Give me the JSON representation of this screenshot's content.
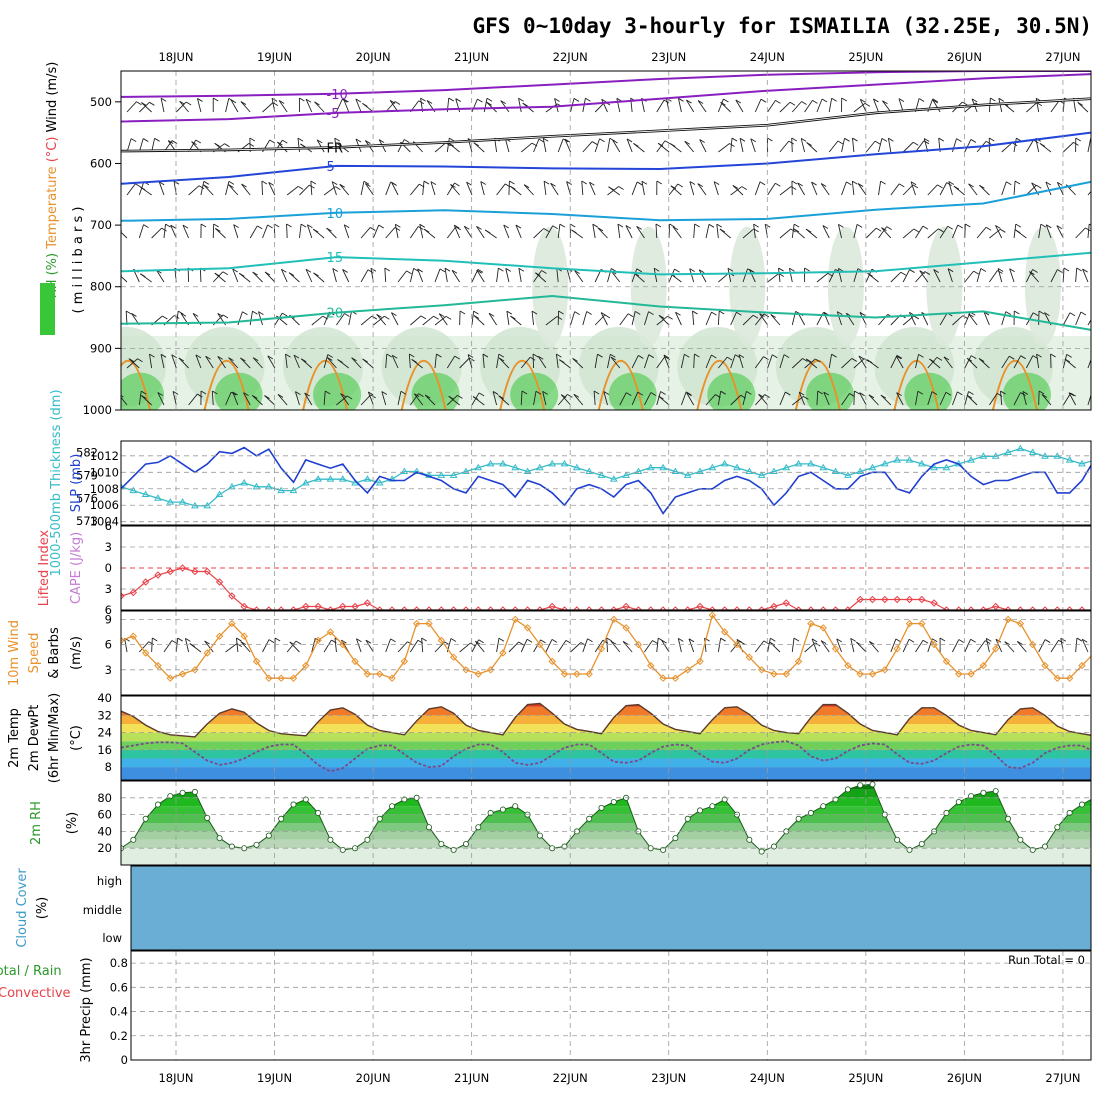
{
  "title": "GFS 0~10day 3-hourly for ISMAILIA (32.25E, 30.5N)",
  "x_labels": [
    "18JUN",
    "19JUN",
    "20JUN",
    "21JUN",
    "22JUN",
    "23JUN",
    "24JUN",
    "25JUN",
    "26JUN",
    "27JUN"
  ],
  "colors": {
    "rh_green": "#39c639",
    "slp": "#1f3fd0",
    "thickness": "#35bcc8",
    "lifted_index": "#e8424a",
    "cape": "#c27cd0",
    "wind_speed": "#e8922c",
    "temp_max": "#e8462a",
    "cloud": "#6aaed6"
  },
  "chart_data": [
    {
      "id": "upper_air",
      "type": "contour",
      "ylabel_parts": [
        {
          "text": "RH (%)",
          "color": "#2b9a2b"
        },
        {
          "text": "Temperature",
          "color": "#e8922c"
        },
        {
          "text": "(°C)",
          "color": "#e8424a"
        },
        {
          "text": "Wind (m/s)",
          "color": "#000000"
        }
      ],
      "ylabel2": "( m i l l i b a r s )",
      "y_ticks": [
        500,
        600,
        700,
        800,
        900,
        1000
      ],
      "ylim": [
        450,
        1000
      ],
      "contours": [
        {
          "label": "-10",
          "color": "#8a1fbf",
          "levels": [
            492,
            490,
            487,
            481,
            472,
            463,
            456,
            452,
            450,
            450
          ]
        },
        {
          "label": "-5",
          "color": "#8a1fbf",
          "levels": [
            532,
            528,
            518,
            512,
            508,
            495,
            482,
            472,
            462,
            455
          ]
        },
        {
          "label": "FR",
          "color": "#111111",
          "levels": [
            580,
            578,
            574,
            566,
            556,
            547,
            538,
            518,
            505,
            495
          ]
        },
        {
          "label": "5",
          "color": "#2345d8",
          "levels": [
            633,
            622,
            604,
            605,
            608,
            609,
            600,
            585,
            572,
            550
          ]
        },
        {
          "label": "10",
          "color": "#1aa0d8",
          "levels": [
            693,
            690,
            680,
            676,
            682,
            692,
            690,
            675,
            665,
            630
          ]
        },
        {
          "label": "15",
          "color": "#20c0b8",
          "levels": [
            775,
            770,
            752,
            758,
            770,
            780,
            778,
            775,
            760,
            745
          ]
        },
        {
          "label": "20",
          "color": "#22b898",
          "levels": [
            860,
            858,
            842,
            830,
            815,
            832,
            842,
            850,
            840,
            870
          ]
        }
      ]
    },
    {
      "id": "slp_thickness",
      "type": "line",
      "ylabel_left": "1000-500mb Thickness (dm)",
      "ylabel_right": "SLP (mb)",
      "y_ticks_left": [
        573,
        576,
        579,
        582
      ],
      "y_ticks_right": [
        1004,
        1006,
        1008,
        1010,
        1012
      ],
      "series": [
        {
          "name": "SLP",
          "axis": "right",
          "values": [
            1008.0,
            1009.5,
            1011.0,
            1011.2,
            1012.0,
            1011.0,
            1010.0,
            1011.0,
            1012.5,
            1012.3,
            1013.0,
            1012.0,
            1012.8,
            1010.5,
            1008.8,
            1011.5,
            1011.0,
            1010.5,
            1011.0,
            1009.0,
            1007.5,
            1009.5,
            1009.0,
            1009.0,
            1010.0,
            1009.5,
            1009.0,
            1008.0,
            1007.5,
            1009.5,
            1009.0,
            1008.5,
            1007.0,
            1009.0,
            1008.5,
            1007.5,
            1006.0,
            1008.0,
            1008.5,
            1008.0,
            1007.0,
            1008.5,
            1009.0,
            1007.5,
            1005.0,
            1007.0,
            1007.5,
            1008.0,
            1008.0,
            1009.0,
            1009.5,
            1009.0,
            1008.0,
            1006.0,
            1007.5,
            1009.5,
            1010.0,
            1009.0,
            1008.0,
            1008.0,
            1009.5,
            1010.0,
            1010.0,
            1008.0,
            1007.5,
            1009.5,
            1011.0,
            1011.5,
            1011.0,
            1009.5,
            1008.5,
            1009.0,
            1009.0,
            1009.5,
            1010.0,
            1010.0,
            1007.5,
            1007.5,
            1009.0,
            1011.5,
            1010.5,
            1009.5,
            1008.5,
            1009.5
          ]
        },
        {
          "name": "Thickness",
          "axis": "left",
          "values": [
            577.5,
            577.0,
            576.5,
            576.0,
            575.5,
            575.5,
            575.0,
            575.0,
            576.5,
            577.5,
            578.0,
            577.5,
            577.5,
            577.0,
            577.0,
            578.0,
            578.5,
            578.5,
            578.5,
            578.0,
            578.5,
            578.0,
            578.5,
            579.5,
            579.5,
            579.0,
            579.0,
            579.0,
            579.5,
            580.0,
            580.5,
            580.5,
            580.0,
            579.5,
            580.0,
            580.5,
            580.5,
            580.0,
            579.5,
            579.0,
            578.5,
            579.0,
            579.5,
            580.0,
            580.0,
            579.5,
            579.0,
            579.5,
            580.0,
            580.5,
            580.0,
            579.5,
            579.0,
            579.5,
            580.0,
            580.5,
            580.5,
            580.0,
            579.5,
            579.0,
            579.5,
            580.0,
            580.5,
            581.0,
            581.0,
            580.5,
            580.0,
            580.0,
            580.5,
            581.0,
            581.5,
            581.5,
            582.0,
            582.5,
            582.0,
            581.5,
            581.5,
            581.0,
            580.5,
            581.0,
            581.5,
            582.0,
            581.5,
            581.0
          ]
        }
      ]
    },
    {
      "id": "stability",
      "type": "line",
      "ylabel_parts": [
        {
          "text": "Lifted Index",
          "color": "#e8424a"
        },
        {
          "text": "CAPE (J/kg)",
          "color": "#c27cd0"
        }
      ],
      "y_ticks": [
        -6,
        -3,
        0,
        3,
        6
      ],
      "y_tick_labels": [
        "6",
        "3",
        "0",
        "3",
        "6"
      ],
      "ylim": [
        -6,
        6
      ],
      "series": [
        {
          "name": "Lifted Index",
          "values": [
            4.0,
            3.5,
            2.0,
            1.0,
            0.5,
            0.0,
            0.5,
            0.5,
            2.0,
            4.0,
            5.5,
            6.0,
            6.0,
            6.0,
            6.0,
            5.5,
            5.5,
            6.0,
            5.5,
            5.5,
            5.0,
            6.0,
            6.0,
            6.0,
            6.0,
            6.0,
            6.0,
            6.0,
            6.0,
            6.0,
            6.0,
            6.0,
            6.0,
            6.0,
            6.0,
            5.5,
            6.0,
            6.0,
            6.0,
            6.0,
            6.0,
            5.5,
            6.0,
            6.0,
            6.0,
            6.0,
            6.0,
            5.5,
            6.0,
            6.0,
            6.0,
            6.0,
            6.0,
            5.5,
            5.0,
            6.0,
            6.0,
            6.0,
            6.0,
            6.0,
            4.5,
            4.5,
            4.5,
            4.5,
            4.5,
            4.5,
            5.0,
            6.0,
            6.0,
            6.0,
            6.0,
            5.5,
            6.0,
            6.0,
            6.0,
            6.0,
            6.0,
            6.0,
            6.0,
            6.0,
            6.0,
            6.0,
            6.0,
            6.0
          ]
        }
      ]
    },
    {
      "id": "wind10m",
      "type": "line",
      "ylabel_parts": [
        {
          "text": "10m Wind",
          "color": "#e8922c"
        },
        {
          "text": "Speed",
          "color": "#e8922c"
        },
        {
          "text": "& Barbs",
          "color": "#000000"
        },
        {
          "text": "(m/s)",
          "color": "#000000"
        }
      ],
      "y_ticks": [
        3,
        6,
        9
      ],
      "ylim": [
        0,
        10
      ],
      "series": [
        {
          "name": "Speed",
          "values": [
            6.5,
            7.0,
            5.0,
            3.5,
            2.0,
            2.5,
            3.0,
            5.0,
            7.0,
            8.5,
            7.0,
            4.0,
            2.0,
            2.0,
            2.0,
            3.5,
            6.5,
            7.5,
            6.0,
            4.0,
            2.5,
            2.5,
            2.0,
            4.0,
            8.5,
            8.5,
            6.5,
            4.5,
            3.0,
            2.5,
            3.0,
            5.0,
            9.0,
            8.0,
            6.0,
            4.0,
            2.5,
            2.5,
            2.5,
            5.5,
            9.0,
            8.0,
            6.0,
            3.5,
            2.0,
            2.0,
            3.0,
            4.0,
            9.5,
            7.5,
            6.0,
            4.5,
            3.0,
            2.5,
            2.5,
            4.0,
            8.5,
            8.0,
            5.5,
            3.5,
            2.5,
            2.5,
            3.0,
            5.5,
            8.5,
            8.5,
            6.0,
            4.0,
            2.5,
            2.5,
            3.5,
            5.5,
            9.0,
            8.5,
            6.0,
            3.5,
            2.0,
            2.0,
            3.5,
            5.0,
            8.5,
            7.5,
            5.5,
            2.5
          ]
        }
      ]
    },
    {
      "id": "temp2m",
      "type": "area",
      "ylabel_parts": [
        {
          "text": "2m Temp",
          "color": "#000000"
        },
        {
          "text": "2m DewPt",
          "color": "#000000"
        },
        {
          "text": "(6hr Min/Max)",
          "color": "#000000"
        },
        {
          "text": "(°C)",
          "color": "#000000"
        }
      ],
      "y_ticks": [
        8,
        16,
        24,
        32,
        40
      ],
      "ylim": [
        2,
        41
      ],
      "series": [
        {
          "name": "2m Temp",
          "values": [
            34.0,
            31.5,
            27.5,
            24.5,
            23.0,
            22.5,
            22.0,
            28.0,
            33.0,
            35.0,
            33.5,
            28.5,
            25.0,
            23.5,
            23.0,
            22.5,
            29.0,
            34.5,
            35.5,
            32.5,
            27.5,
            25.0,
            24.0,
            23.0,
            29.5,
            35.0,
            36.0,
            33.0,
            27.5,
            25.0,
            24.0,
            23.0,
            31.0,
            37.0,
            37.5,
            33.0,
            28.0,
            25.5,
            24.5,
            23.5,
            31.0,
            36.5,
            37.0,
            33.0,
            28.0,
            25.5,
            24.5,
            23.5,
            30.0,
            35.5,
            36.0,
            32.5,
            27.5,
            25.0,
            24.0,
            23.5,
            31.0,
            37.0,
            37.0,
            33.0,
            28.0,
            25.0,
            24.0,
            23.0,
            30.5,
            35.5,
            35.5,
            32.0,
            27.5,
            25.0,
            24.0,
            23.0,
            30.0,
            35.0,
            35.5,
            32.0,
            27.0,
            24.5,
            23.5,
            22.5,
            22.0,
            22.0,
            22.0,
            24.0
          ]
        },
        {
          "name": "2m DewPt",
          "values": [
            17.0,
            18.0,
            19.0,
            19.5,
            19.5,
            19.0,
            15.0,
            11.0,
            9.0,
            10.0,
            12.0,
            15.0,
            17.5,
            18.5,
            18.5,
            14.0,
            9.0,
            6.0,
            7.5,
            12.0,
            16.5,
            18.0,
            18.0,
            14.0,
            10.0,
            8.0,
            8.5,
            13.0,
            16.5,
            18.5,
            18.5,
            15.0,
            10.0,
            9.0,
            10.0,
            13.5,
            17.0,
            18.5,
            18.5,
            14.5,
            10.5,
            10.0,
            11.0,
            14.5,
            17.5,
            18.5,
            18.0,
            14.0,
            10.5,
            10.0,
            12.0,
            16.0,
            18.5,
            19.5,
            20.0,
            18.0,
            13.0,
            11.0,
            12.0,
            15.5,
            18.0,
            19.0,
            18.5,
            14.0,
            10.0,
            9.5,
            11.0,
            14.5,
            17.5,
            18.5,
            18.0,
            13.5,
            8.0,
            7.5,
            10.0,
            14.5,
            17.0,
            18.0,
            18.0,
            15.0,
            13.0,
            12.0,
            13.0,
            16.0
          ]
        }
      ]
    },
    {
      "id": "rh2m",
      "type": "area",
      "ylabel_parts": [
        {
          "text": "2m RH",
          "color": "#2b9a2b"
        },
        {
          "text": "(%)",
          "color": "#000000"
        }
      ],
      "y_ticks": [
        20,
        40,
        60,
        80
      ],
      "ylim": [
        0,
        100
      ],
      "series": [
        {
          "name": "2m RH",
          "values": [
            20,
            30,
            55,
            72,
            82,
            86,
            87,
            56,
            32,
            22,
            20,
            24,
            35,
            55,
            72,
            78,
            62,
            30,
            18,
            20,
            30,
            55,
            70,
            78,
            80,
            45,
            25,
            18,
            25,
            45,
            62,
            66,
            70,
            60,
            35,
            20,
            22,
            40,
            55,
            68,
            75,
            80,
            40,
            20,
            18,
            32,
            55,
            65,
            70,
            78,
            60,
            30,
            16,
            22,
            40,
            55,
            62,
            70,
            78,
            90,
            95,
            96,
            60,
            30,
            18,
            25,
            40,
            62,
            75,
            82,
            86,
            88,
            55,
            30,
            18,
            22,
            45,
            62,
            72,
            80,
            82,
            78,
            72,
            55
          ]
        }
      ]
    },
    {
      "id": "cloud",
      "type": "heatmap",
      "ylabel_parts": [
        {
          "text": "Cloud Cover",
          "color": "#3e9bc8"
        },
        {
          "text": "(%)",
          "color": "#000000"
        }
      ],
      "levels": [
        "high",
        "middle",
        "low"
      ],
      "fill": "#6aaed6"
    },
    {
      "id": "precip",
      "type": "bar",
      "ylabel_parts": [
        {
          "text": "Total / Rain",
          "color": "#2b9a2b"
        },
        {
          "text": "Convective",
          "color": "#e8424a"
        },
        {
          "text": "3hr Precip (mm)",
          "color": "#000000"
        }
      ],
      "y_ticks": [
        0,
        0.2,
        0.4,
        0.6,
        0.8
      ],
      "ylim": [
        0,
        0.9
      ],
      "run_total_text": "Run Total = 0",
      "values": []
    }
  ]
}
